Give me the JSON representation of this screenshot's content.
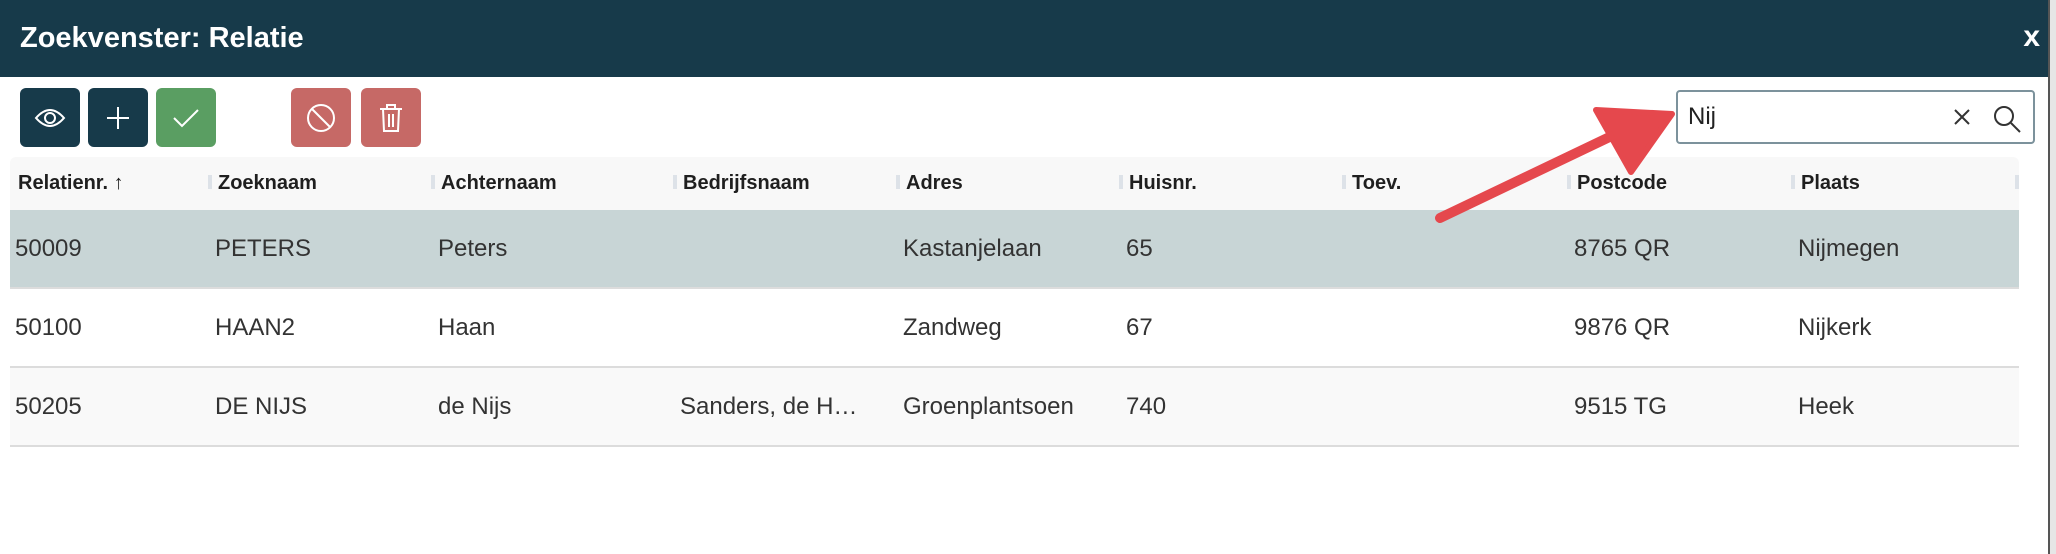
{
  "window": {
    "title": "Zoekvenster: Relatie",
    "close_label": "x"
  },
  "toolbar": {
    "buttons": [
      {
        "name": "view",
        "icon": "eye-icon",
        "color": "#173a4a"
      },
      {
        "name": "add",
        "icon": "plus-icon",
        "color": "#173a4a"
      },
      {
        "name": "select",
        "icon": "check-icon",
        "color": "#5a9e62"
      },
      {
        "name": "cancel",
        "icon": "ban-icon",
        "color": "#c66966"
      },
      {
        "name": "delete",
        "icon": "trash-icon",
        "color": "#c66966"
      }
    ]
  },
  "search": {
    "value": "Nij",
    "clear_icon": "x-icon",
    "search_icon": "magnifier-icon"
  },
  "table": {
    "columns": [
      "Relatienr.",
      "Zoeknaam",
      "Achternaam",
      "Bedrijfsnaam",
      "Adres",
      "Huisnr.",
      "Toev.",
      "Postcode",
      "Plaats"
    ],
    "sort": {
      "column": "Relatienr.",
      "direction": "ascending"
    },
    "rows": [
      [
        "50009",
        "PETERS",
        "Peters",
        "",
        "Kastanjelaan",
        "65",
        "",
        "8765 QR",
        "Nijmegen"
      ],
      [
        "50100",
        "HAAN2",
        "Haan",
        "",
        "Zandweg",
        "67",
        "",
        "9876 QR",
        "Nijkerk"
      ],
      [
        "50205",
        "DE NIJS",
        "de Nijs",
        "Sanders, de H…",
        "Groenplantsoen",
        "740",
        "",
        "9515 TG",
        "Heek"
      ]
    ],
    "selected_row": 0
  },
  "colors": {
    "header": "#173a4a",
    "selected_row": "#c8d5d6",
    "annotation_arrow": "#e5484d"
  }
}
